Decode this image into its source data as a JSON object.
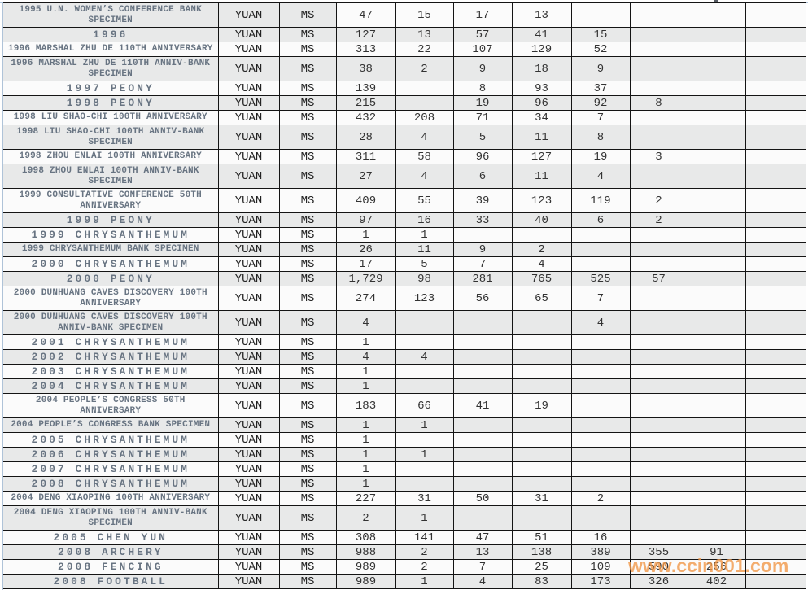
{
  "watermark": {
    "text": "www.ccin001.com",
    "color_hex": "#F2994A"
  },
  "frame": {
    "accent_color_hex": "#AFC3D8"
  },
  "table": {
    "denomination_label": "YUAN",
    "grade_label": "MS",
    "shade_color_hex": "#E8E9E9",
    "rows": [
      {
        "name": "1995 U.N. WOMEN’S CONFERENCE BANK SPECIMEN",
        "two_line": true,
        "shade": "head",
        "values": [
          "47",
          "15",
          "17",
          "13",
          "",
          "",
          "",
          ""
        ]
      },
      {
        "name": "1996",
        "two_line": false,
        "shade": "full",
        "values": [
          "127",
          "13",
          "57",
          "41",
          "15",
          "",
          "",
          ""
        ]
      },
      {
        "name": "1996 MARSHAL ZHU DE 110TH ANNIVERSARY",
        "two_line": false,
        "shade": "none",
        "values": [
          "313",
          "22",
          "107",
          "129",
          "52",
          "",
          "",
          ""
        ]
      },
      {
        "name": "1996 MARSHAL ZHU DE 110TH ANNIV-BANK SPECIMEN",
        "two_line": true,
        "shade": "full",
        "values": [
          "38",
          "2",
          "9",
          "18",
          "9",
          "",
          "",
          ""
        ]
      },
      {
        "name": "1997 PEONY",
        "two_line": false,
        "shade": "none",
        "values": [
          "139",
          "",
          "8",
          "93",
          "37",
          "",
          "",
          ""
        ]
      },
      {
        "name": "1998 PEONY",
        "two_line": false,
        "shade": "full",
        "values": [
          "215",
          "",
          "19",
          "96",
          "92",
          "8",
          "",
          ""
        ]
      },
      {
        "name": "1998 LIU SHAO-CHI 100TH ANNIVERSARY",
        "two_line": false,
        "shade": "none",
        "values": [
          "432",
          "208",
          "71",
          "34",
          "7",
          "",
          "",
          ""
        ]
      },
      {
        "name": "1998 LIU SHAO-CHI 100TH ANNIV-BANK SPECIMEN",
        "two_line": true,
        "shade": "full",
        "values": [
          "28",
          "4",
          "5",
          "11",
          "8",
          "",
          "",
          ""
        ]
      },
      {
        "name": "1998 ZHOU ENLAI 100TH ANNIVERSARY",
        "two_line": false,
        "shade": "none",
        "values": [
          "311",
          "58",
          "96",
          "127",
          "19",
          "3",
          "",
          ""
        ]
      },
      {
        "name": "1998 ZHOU ENLAI 100TH ANNIV-BANK SPECIMEN",
        "two_line": true,
        "shade": "full",
        "values": [
          "27",
          "4",
          "6",
          "11",
          "4",
          "",
          "",
          ""
        ]
      },
      {
        "name": "1999 CONSULTATIVE CONFERENCE 50TH ANNIVERSARY",
        "two_line": true,
        "shade": "none",
        "values": [
          "409",
          "55",
          "39",
          "123",
          "119",
          "2",
          "",
          ""
        ]
      },
      {
        "name": "1999 PEONY",
        "two_line": false,
        "shade": "full",
        "values": [
          "97",
          "16",
          "33",
          "40",
          "6",
          "2",
          "",
          ""
        ]
      },
      {
        "name": "1999 CHRYSANTHEMUM",
        "two_line": false,
        "shade": "none",
        "values": [
          "1",
          "1",
          "",
          "",
          "",
          "",
          "",
          ""
        ]
      },
      {
        "name": "1999 CHRYSANTHEMUM BANK SPECIMEN",
        "two_line": false,
        "shade": "full",
        "values": [
          "26",
          "11",
          "9",
          "2",
          "",
          "",
          "",
          ""
        ]
      },
      {
        "name": "2000 CHRYSANTHEMUM",
        "two_line": false,
        "shade": "none",
        "values": [
          "17",
          "5",
          "7",
          "4",
          "",
          "",
          "",
          ""
        ]
      },
      {
        "name": "2000 PEONY",
        "two_line": false,
        "shade": "full",
        "values": [
          "1,729",
          "98",
          "281",
          "765",
          "525",
          "57",
          "",
          ""
        ]
      },
      {
        "name": "2000 DUNHUANG CAVES DISCOVERY 100TH ANNIVERSARY",
        "two_line": true,
        "shade": "none",
        "values": [
          "274",
          "123",
          "56",
          "65",
          "7",
          "",
          "",
          ""
        ]
      },
      {
        "name": "2000 DUNHUANG CAVES DISCOVERY 100TH ANNIV-BANK SPECIMEN",
        "two_line": true,
        "shade": "full",
        "values": [
          "4",
          "",
          "",
          "",
          "4",
          "",
          "",
          ""
        ]
      },
      {
        "name": "2001 CHRYSANTHEMUM",
        "two_line": false,
        "shade": "none",
        "values": [
          "1",
          "",
          "",
          "",
          "",
          "",
          "",
          ""
        ]
      },
      {
        "name": "2002 CHRYSANTHEMUM",
        "two_line": false,
        "shade": "full",
        "values": [
          "4",
          "4",
          "",
          "",
          "",
          "",
          "",
          ""
        ]
      },
      {
        "name": "2003 CHRYSANTHEMUM",
        "two_line": false,
        "shade": "none",
        "values": [
          "1",
          "",
          "",
          "",
          "",
          "",
          "",
          ""
        ]
      },
      {
        "name": "2004 CHRYSANTHEMUM",
        "two_line": false,
        "shade": "full",
        "values": [
          "1",
          "",
          "",
          "",
          "",
          "",
          "",
          ""
        ]
      },
      {
        "name": "2004 PEOPLE’S CONGRESS 50TH ANNIVERSARY",
        "two_line": true,
        "shade": "none",
        "values": [
          "183",
          "66",
          "41",
          "19",
          "",
          "",
          "",
          ""
        ]
      },
      {
        "name": "2004 PEOPLE’S CONGRESS BANK SPECIMEN",
        "two_line": false,
        "shade": "full",
        "values": [
          "1",
          "1",
          "",
          "",
          "",
          "",
          "",
          ""
        ]
      },
      {
        "name": "2005 CHRYSANTHEMUM",
        "two_line": false,
        "shade": "none",
        "values": [
          "1",
          "",
          "",
          "",
          "",
          "",
          "",
          ""
        ]
      },
      {
        "name": "2006 CHRYSANTHEMUM",
        "two_line": false,
        "shade": "full",
        "values": [
          "1",
          "1",
          "",
          "",
          "",
          "",
          "",
          ""
        ]
      },
      {
        "name": "2007 CHRYSANTHEMUM",
        "two_line": false,
        "shade": "none",
        "values": [
          "1",
          "",
          "",
          "",
          "",
          "",
          "",
          ""
        ]
      },
      {
        "name": "2008 CHRYSANTHEMUM",
        "two_line": false,
        "shade": "full",
        "values": [
          "1",
          "",
          "",
          "",
          "",
          "",
          "",
          ""
        ]
      },
      {
        "name": "2004 DENG XIAOPING 100TH ANNIVERSARY",
        "two_line": false,
        "shade": "none",
        "values": [
          "227",
          "31",
          "50",
          "31",
          "2",
          "",
          "",
          ""
        ]
      },
      {
        "name": "2004 DENG XIAOPING 100TH ANNIV-BANK SPECIMEN",
        "two_line": true,
        "shade": "full",
        "values": [
          "2",
          "1",
          "",
          "",
          "",
          "",
          "",
          ""
        ]
      },
      {
        "name": "2005 CHEN YUN",
        "two_line": false,
        "shade": "none",
        "values": [
          "308",
          "141",
          "47",
          "51",
          "16",
          "",
          "",
          ""
        ]
      },
      {
        "name": "2008 ARCHERY",
        "two_line": false,
        "shade": "full",
        "values": [
          "988",
          "2",
          "13",
          "138",
          "389",
          "355",
          "91",
          ""
        ]
      },
      {
        "name": "2008 FENCING",
        "two_line": false,
        "shade": "none",
        "values": [
          "989",
          "2",
          "7",
          "25",
          "109",
          "590",
          "256",
          ""
        ]
      },
      {
        "name": "2008 FOOTBALL",
        "two_line": false,
        "shade": "full",
        "values": [
          "989",
          "1",
          "4",
          "83",
          "173",
          "326",
          "402",
          ""
        ]
      }
    ]
  }
}
